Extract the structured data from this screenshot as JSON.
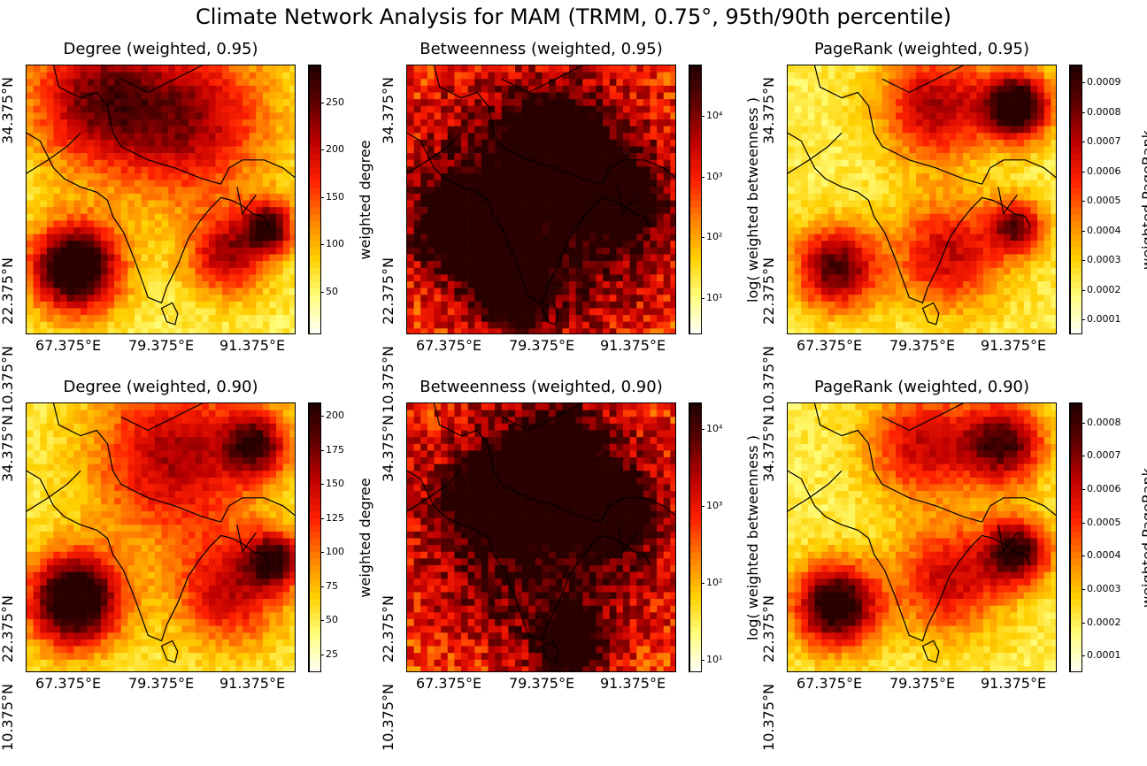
{
  "figure": {
    "title": "Climate Network Analysis for MAM (TRMM, 0.75°, 95th/90th percentile)"
  },
  "axes": {
    "y_ticks": [
      "34.375°N",
      "22.375°N",
      "10.375°N"
    ],
    "x_ticks": [
      "67.375°E",
      "79.375°E",
      "91.375°E"
    ]
  },
  "colors": {
    "cmap": "hot_r",
    "cmap_stops": [
      "#ffffff",
      "#ffff80",
      "#ffd000",
      "#ff8000",
      "#ff2000",
      "#c00000",
      "#600000",
      "#200000"
    ],
    "coastline": "#000000"
  },
  "chart_data": [
    {
      "type": "heatmap",
      "title": "Degree (weighted, 0.95)",
      "colorbar_label": "weighted degree",
      "scale": "linear",
      "vmin": 5,
      "vmax": 290,
      "colorbar_ticks": [
        "250",
        "200",
        "150",
        "100",
        "50"
      ],
      "colorbar_tick_values": [
        250,
        200,
        150,
        100,
        50
      ],
      "hotspots": [
        [
          0.18,
          0.75,
          0.16,
          1.0
        ],
        [
          0.9,
          0.6,
          0.09,
          0.7
        ],
        [
          0.6,
          0.2,
          0.3,
          0.55
        ],
        [
          0.25,
          0.12,
          0.25,
          0.55
        ],
        [
          0.75,
          0.7,
          0.15,
          0.55
        ]
      ]
    },
    {
      "type": "heatmap",
      "title": "Betweenness (weighted, 0.95)",
      "colorbar_label": "log( weighted betweenness )",
      "scale": "log",
      "vmin": 2.5,
      "vmax": 70000,
      "colorbar_ticks": [
        "10⁴",
        "10³",
        "10²",
        "10¹"
      ],
      "colorbar_tick_values": [
        10000,
        1000,
        100,
        10
      ],
      "hotspots": [
        [
          0.5,
          0.5,
          0.5,
          0.65
        ],
        [
          0.55,
          0.3,
          0.15,
          0.8
        ],
        [
          0.2,
          0.6,
          0.15,
          0.7
        ],
        [
          0.8,
          0.5,
          0.12,
          0.75
        ],
        [
          0.4,
          0.85,
          0.12,
          0.7
        ]
      ]
    },
    {
      "type": "heatmap",
      "title": "PageRank (weighted, 0.95)",
      "colorbar_label": "weighted PageRank",
      "scale": "linear",
      "vmin": 5e-05,
      "vmax": 0.00096,
      "colorbar_ticks": [
        "0.0009",
        "0.0008",
        "0.0007",
        "0.0006",
        "0.0005",
        "0.0004",
        "0.0003",
        "0.0002",
        "0.0001"
      ],
      "colorbar_tick_values": [
        0.0009,
        0.0008,
        0.0007,
        0.0006,
        0.0005,
        0.0004,
        0.0003,
        0.0002,
        0.0001
      ],
      "hotspots": [
        [
          0.85,
          0.15,
          0.12,
          0.95
        ],
        [
          0.18,
          0.75,
          0.15,
          0.7
        ],
        [
          0.85,
          0.6,
          0.1,
          0.6
        ],
        [
          0.55,
          0.15,
          0.2,
          0.55
        ],
        [
          0.6,
          0.7,
          0.2,
          0.5
        ]
      ]
    },
    {
      "type": "heatmap",
      "title": "Degree (weighted, 0.90)",
      "colorbar_label": "weighted degree",
      "scale": "linear",
      "vmin": 12,
      "vmax": 210,
      "colorbar_ticks": [
        "200",
        "175",
        "150",
        "125",
        "100",
        "75",
        "50",
        "25"
      ],
      "colorbar_tick_values": [
        200,
        175,
        150,
        125,
        100,
        75,
        50,
        25
      ],
      "hotspots": [
        [
          0.18,
          0.73,
          0.17,
          1.0
        ],
        [
          0.92,
          0.58,
          0.1,
          0.7
        ],
        [
          0.55,
          0.2,
          0.3,
          0.55
        ],
        [
          0.85,
          0.15,
          0.12,
          0.6
        ],
        [
          0.75,
          0.7,
          0.2,
          0.5
        ]
      ]
    },
    {
      "type": "heatmap",
      "title": "Betweenness (weighted, 0.90)",
      "colorbar_label": "log( weighted betweenness )",
      "scale": "log",
      "vmin": 7,
      "vmax": 22000,
      "colorbar_ticks": [
        "10⁴",
        "10³",
        "10²",
        "10¹"
      ],
      "colorbar_tick_values": [
        10000,
        1000,
        100,
        10
      ],
      "hotspots": [
        [
          0.5,
          0.45,
          0.5,
          0.6
        ],
        [
          0.75,
          0.4,
          0.12,
          0.85
        ],
        [
          0.3,
          0.35,
          0.12,
          0.75
        ],
        [
          0.55,
          0.2,
          0.15,
          0.7
        ],
        [
          0.6,
          0.9,
          0.12,
          0.7
        ]
      ]
    },
    {
      "type": "heatmap",
      "title": "PageRank (weighted, 0.90)",
      "colorbar_label": "weighted PageRank",
      "scale": "linear",
      "vmin": 5e-05,
      "vmax": 0.00086,
      "colorbar_ticks": [
        "0.0008",
        "0.0007",
        "0.0006",
        "0.0005",
        "0.0004",
        "0.0003",
        "0.0002",
        "0.0001"
      ],
      "colorbar_tick_values": [
        0.0008,
        0.0007,
        0.0006,
        0.0005,
        0.0004,
        0.0003,
        0.0002,
        0.0001
      ],
      "hotspots": [
        [
          0.18,
          0.75,
          0.15,
          0.9
        ],
        [
          0.85,
          0.55,
          0.12,
          0.75
        ],
        [
          0.8,
          0.15,
          0.15,
          0.7
        ],
        [
          0.5,
          0.15,
          0.2,
          0.5
        ],
        [
          0.6,
          0.65,
          0.2,
          0.5
        ]
      ]
    }
  ]
}
